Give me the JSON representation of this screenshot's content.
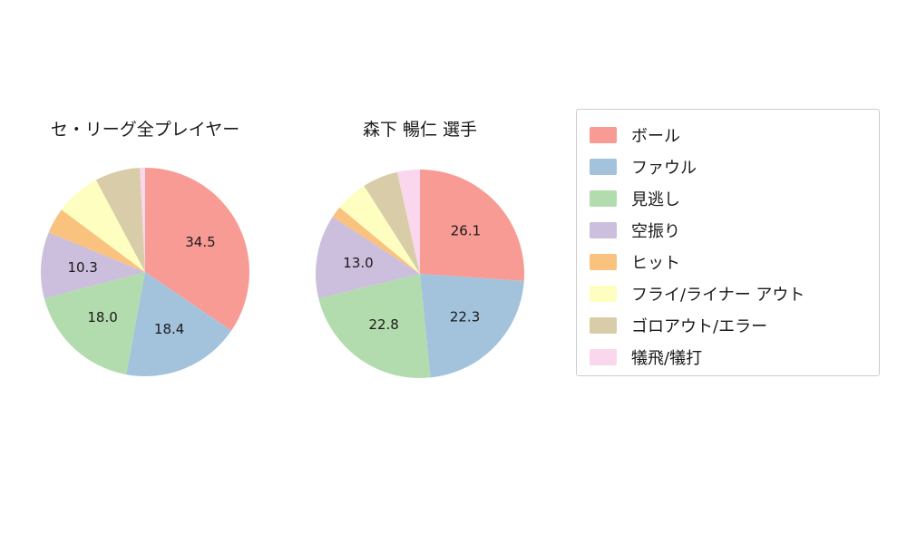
{
  "legend": {
    "items": [
      {
        "name": "ball",
        "label": "ボール",
        "color": "#F89B95"
      },
      {
        "name": "foul",
        "label": "ファウル",
        "color": "#A3C3DD"
      },
      {
        "name": "called-strike",
        "label": "見逃し",
        "color": "#B3DCAE"
      },
      {
        "name": "swinging-strike",
        "label": "空振り",
        "color": "#CCBEDD"
      },
      {
        "name": "hit",
        "label": "ヒット",
        "color": "#FAC27F"
      },
      {
        "name": "fly-liner-out",
        "label": "フライ/ライナー アウト",
        "color": "#FEFEC0"
      },
      {
        "name": "ground-out-error",
        "label": "ゴロアウト/エラー",
        "color": "#D8CDA8"
      },
      {
        "name": "sacrifice",
        "label": "犠飛/犠打",
        "color": "#FAD7EC"
      }
    ]
  },
  "chart_data": [
    {
      "type": "pie",
      "title": "セ・リーグ全プレイヤー",
      "categories": [
        "ボール",
        "ファウル",
        "見逃し",
        "空振り",
        "ヒット",
        "フライ/ライナー アウト",
        "ゴロアウト/エラー",
        "犠飛/犠打"
      ],
      "values": [
        34.5,
        18.4,
        18.0,
        10.3,
        4.0,
        7.0,
        7.0,
        0.8
      ],
      "slice_labels": [
        "34.5",
        "18.4",
        "18.0",
        "10.3",
        "",
        "",
        "",
        ""
      ],
      "colors": [
        "#F89B95",
        "#A3C3DD",
        "#B3DCAE",
        "#CCBEDD",
        "#FAC27F",
        "#FEFEC0",
        "#D8CDA8",
        "#FAD7EC"
      ],
      "start_angle_deg": 90,
      "direction": "clockwise",
      "legend_position": "right"
    },
    {
      "type": "pie",
      "title": "森下 暢仁  選手",
      "categories": [
        "ボール",
        "ファウル",
        "見逃し",
        "空振り",
        "ヒット",
        "フライ/ライナー アウト",
        "ゴロアウト/エラー",
        "犠飛/犠打"
      ],
      "values": [
        26.1,
        22.3,
        22.8,
        13.0,
        1.8,
        5.0,
        5.5,
        3.5
      ],
      "slice_labels": [
        "26.1",
        "22.3",
        "22.8",
        "13.0",
        "",
        "",
        "",
        ""
      ],
      "colors": [
        "#F89B95",
        "#A3C3DD",
        "#B3DCAE",
        "#CCBEDD",
        "#FAC27F",
        "#FEFEC0",
        "#D8CDA8",
        "#FAD7EC"
      ],
      "start_angle_deg": 90,
      "direction": "clockwise",
      "legend_position": "right"
    }
  ]
}
